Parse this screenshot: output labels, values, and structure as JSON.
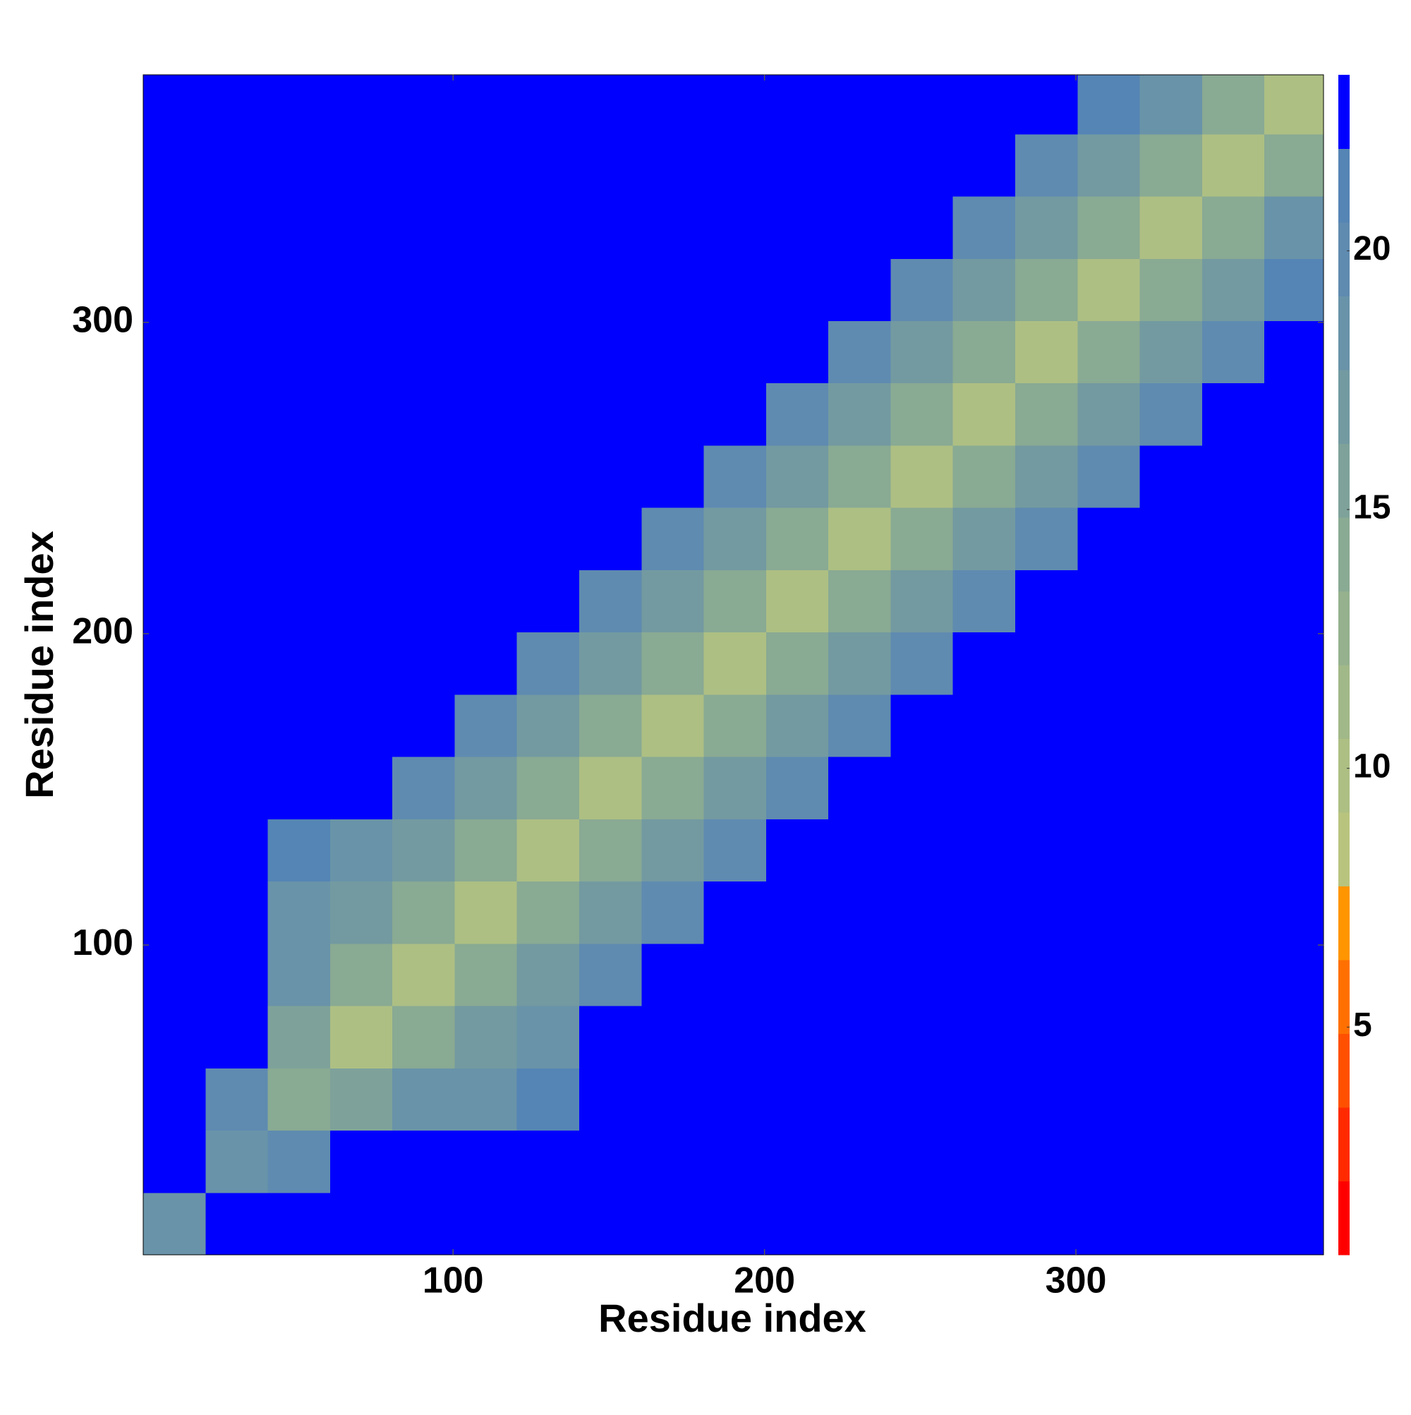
{
  "chart_data": {
    "type": "heatmap",
    "xlabel": "Residue index",
    "ylabel": "Residue index",
    "xlim": [
      0.5,
      379.5
    ],
    "ylim": [
      0.5,
      379.5
    ],
    "xticks": [
      100,
      200,
      300
    ],
    "yticks": [
      100,
      200,
      300
    ],
    "x_edges": [
      0.5,
      20.5,
      40.5,
      60.5,
      80.5,
      100.5,
      120.5,
      140.5,
      160.5,
      180.5,
      200.5,
      220.5,
      240.5,
      260.5,
      280.5,
      300.5,
      320.5,
      340.5,
      360.5,
      379.5
    ],
    "y_edges": [
      0.5,
      20.5,
      40.5,
      60.5,
      80.5,
      100.5,
      120.5,
      140.5,
      160.5,
      180.5,
      200.5,
      220.5,
      240.5,
      260.5,
      280.5,
      300.5,
      320.5,
      340.5,
      360.5,
      379.5
    ],
    "values": [
      [
        18,
        23,
        23,
        23,
        23,
        23,
        23,
        23,
        23,
        23,
        23,
        23,
        23,
        23,
        23,
        23,
        23,
        23,
        23
      ],
      [
        23,
        18,
        20,
        23,
        23,
        23,
        23,
        23,
        23,
        23,
        23,
        23,
        23,
        23,
        23,
        23,
        23,
        23,
        23
      ],
      [
        23,
        20,
        14,
        16,
        19,
        19,
        21,
        23,
        23,
        23,
        23,
        23,
        23,
        23,
        23,
        23,
        23,
        23,
        23
      ],
      [
        23,
        23,
        16,
        10,
        14,
        17,
        19,
        22,
        23,
        23,
        23,
        23,
        23,
        23,
        23,
        23,
        23,
        23,
        23
      ],
      [
        23,
        23,
        19,
        14,
        10,
        14,
        17,
        20,
        23,
        23,
        23,
        23,
        23,
        23,
        23,
        23,
        23,
        23,
        23
      ],
      [
        23,
        23,
        19,
        17,
        14,
        10,
        14,
        17,
        20,
        23,
        23,
        23,
        23,
        23,
        23,
        23,
        23,
        23,
        23
      ],
      [
        23,
        23,
        21,
        19,
        17,
        14,
        10,
        14,
        17,
        20,
        22,
        23,
        23,
        23,
        23,
        23,
        23,
        23,
        23
      ],
      [
        23,
        23,
        23,
        22,
        20,
        17,
        14,
        10,
        14,
        17,
        20,
        22,
        23,
        23,
        23,
        23,
        23,
        23,
        23
      ],
      [
        23,
        23,
        23,
        23,
        23,
        20,
        17,
        14,
        10,
        14,
        17,
        20,
        22,
        23,
        23,
        23,
        23,
        23,
        23
      ],
      [
        23,
        23,
        23,
        23,
        23,
        23,
        20,
        17,
        14,
        10,
        14,
        17,
        20,
        22,
        23,
        23,
        23,
        23,
        23
      ],
      [
        23,
        23,
        23,
        23,
        23,
        23,
        22,
        20,
        17,
        14,
        10,
        14,
        17,
        20,
        22,
        23,
        23,
        23,
        23
      ],
      [
        23,
        23,
        23,
        23,
        23,
        23,
        23,
        22,
        20,
        17,
        14,
        10,
        14,
        17,
        20,
        22,
        23,
        23,
        23
      ],
      [
        23,
        23,
        23,
        23,
        23,
        23,
        23,
        23,
        22,
        20,
        17,
        14,
        10,
        14,
        17,
        20,
        22,
        23,
        23
      ],
      [
        23,
        23,
        23,
        23,
        23,
        23,
        23,
        23,
        23,
        22,
        20,
        17,
        14,
        10,
        14,
        17,
        20,
        22,
        23
      ],
      [
        23,
        23,
        23,
        23,
        23,
        23,
        23,
        23,
        23,
        23,
        22,
        20,
        17,
        14,
        10,
        14,
        17,
        20,
        22
      ],
      [
        23,
        23,
        23,
        23,
        23,
        23,
        23,
        23,
        23,
        23,
        23,
        22,
        20,
        17,
        14,
        10,
        14,
        17,
        21
      ],
      [
        23,
        23,
        23,
        23,
        23,
        23,
        23,
        23,
        23,
        23,
        23,
        23,
        22,
        20,
        17,
        14,
        10,
        14,
        18
      ],
      [
        23,
        23,
        23,
        23,
        23,
        23,
        23,
        23,
        23,
        23,
        23,
        23,
        23,
        22,
        20,
        17,
        14,
        10,
        14
      ],
      [
        23,
        23,
        23,
        23,
        23,
        23,
        23,
        23,
        23,
        23,
        23,
        23,
        23,
        23,
        22,
        21,
        18,
        14,
        10
      ]
    ],
    "colorbar": {
      "clim": [
        0.6,
        23.4
      ],
      "ticks": [
        5,
        10,
        15,
        20
      ],
      "colors": [
        "#ff0000",
        "#ff2a00",
        "#ff5000",
        "#ff7000",
        "#ff9500",
        "#b8c47e",
        "#adbf83",
        "#a1b888",
        "#95b18d",
        "#89aa93",
        "#7ea29a",
        "#739aa1",
        "#6993a9",
        "#5f8bb0",
        "#5585b5",
        "#0000ff"
      ]
    }
  }
}
